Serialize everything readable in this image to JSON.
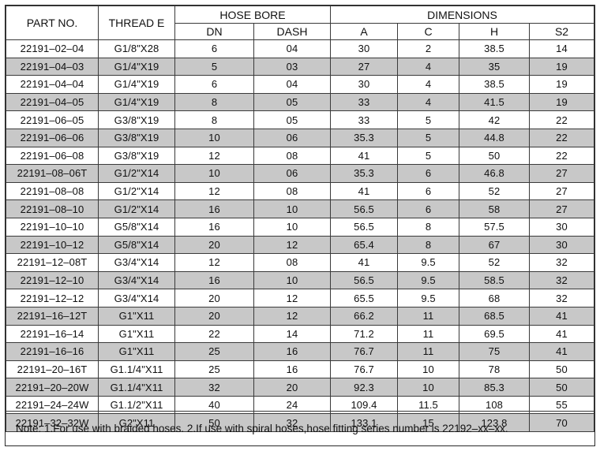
{
  "table": {
    "header": {
      "part_no": "PART NO.",
      "thread_e": "THREAD E",
      "hose_bore": "HOSE BORE",
      "dimensions": "DIMENSIONS",
      "dn": "DN",
      "dash": "DASH",
      "a": "A",
      "c": "C",
      "h": "H",
      "s2": "S2"
    },
    "rows": [
      {
        "part": "22191–02–04",
        "thread": "G1/8\"X28",
        "dn": "6",
        "dash": "04",
        "a": "30",
        "c": "2",
        "h": "38.5",
        "s2": "14"
      },
      {
        "part": "22191–04–03",
        "thread": "G1/4\"X19",
        "dn": "5",
        "dash": "03",
        "a": "27",
        "c": "4",
        "h": "35",
        "s2": "19"
      },
      {
        "part": "22191–04–04",
        "thread": "G1/4\"X19",
        "dn": "6",
        "dash": "04",
        "a": "30",
        "c": "4",
        "h": "38.5",
        "s2": "19"
      },
      {
        "part": "22191–04–05",
        "thread": "G1/4\"X19",
        "dn": "8",
        "dash": "05",
        "a": "33",
        "c": "4",
        "h": "41.5",
        "s2": "19"
      },
      {
        "part": "22191–06–05",
        "thread": "G3/8\"X19",
        "dn": "8",
        "dash": "05",
        "a": "33",
        "c": "5",
        "h": "42",
        "s2": "22"
      },
      {
        "part": "22191–06–06",
        "thread": "G3/8\"X19",
        "dn": "10",
        "dash": "06",
        "a": "35.3",
        "c": "5",
        "h": "44.8",
        "s2": "22"
      },
      {
        "part": "22191–06–08",
        "thread": "G3/8\"X19",
        "dn": "12",
        "dash": "08",
        "a": "41",
        "c": "5",
        "h": "50",
        "s2": "22"
      },
      {
        "part": "22191–08–06T",
        "thread": "G1/2\"X14",
        "dn": "10",
        "dash": "06",
        "a": "35.3",
        "c": "6",
        "h": "46.8",
        "s2": "27"
      },
      {
        "part": "22191–08–08",
        "thread": "G1/2\"X14",
        "dn": "12",
        "dash": "08",
        "a": "41",
        "c": "6",
        "h": "52",
        "s2": "27"
      },
      {
        "part": "22191–08–10",
        "thread": "G1/2\"X14",
        "dn": "16",
        "dash": "10",
        "a": "56.5",
        "c": "6",
        "h": "58",
        "s2": "27"
      },
      {
        "part": "22191–10–10",
        "thread": "G5/8\"X14",
        "dn": "16",
        "dash": "10",
        "a": "56.5",
        "c": "8",
        "h": "57.5",
        "s2": "30"
      },
      {
        "part": "22191–10–12",
        "thread": "G5/8\"X14",
        "dn": "20",
        "dash": "12",
        "a": "65.4",
        "c": "8",
        "h": "67",
        "s2": "30"
      },
      {
        "part": "22191–12–08T",
        "thread": "G3/4\"X14",
        "dn": "12",
        "dash": "08",
        "a": "41",
        "c": "9.5",
        "h": "52",
        "s2": "32"
      },
      {
        "part": "22191–12–10",
        "thread": "G3/4\"X14",
        "dn": "16",
        "dash": "10",
        "a": "56.5",
        "c": "9.5",
        "h": "58.5",
        "s2": "32"
      },
      {
        "part": "22191–12–12",
        "thread": "G3/4\"X14",
        "dn": "20",
        "dash": "12",
        "a": "65.5",
        "c": "9.5",
        "h": "68",
        "s2": "32"
      },
      {
        "part": "22191–16–12T",
        "thread": "G1\"X11",
        "dn": "20",
        "dash": "12",
        "a": "66.2",
        "c": "11",
        "h": "68.5",
        "s2": "41"
      },
      {
        "part": "22191–16–14",
        "thread": "G1\"X11",
        "dn": "22",
        "dash": "14",
        "a": "71.2",
        "c": "11",
        "h": "69.5",
        "s2": "41"
      },
      {
        "part": "22191–16–16",
        "thread": "G1\"X11",
        "dn": "25",
        "dash": "16",
        "a": "76.7",
        "c": "11",
        "h": "75",
        "s2": "41"
      },
      {
        "part": "22191–20–16T",
        "thread": "G1.1/4\"X11",
        "dn": "25",
        "dash": "16",
        "a": "76.7",
        "c": "10",
        "h": "78",
        "s2": "50"
      },
      {
        "part": "22191–20–20W",
        "thread": "G1.1/4\"X11",
        "dn": "32",
        "dash": "20",
        "a": "92.3",
        "c": "10",
        "h": "85.3",
        "s2": "50"
      },
      {
        "part": "22191–24–24W",
        "thread": "G1.1/2\"X11",
        "dn": "40",
        "dash": "24",
        "a": "109.4",
        "c": "11.5",
        "h": "108",
        "s2": "55"
      },
      {
        "part": "22191–32–32W",
        "thread": "G2\"X11",
        "dn": "50",
        "dash": "32",
        "a": "133.1",
        "c": "15",
        "h": "123.8",
        "s2": "70"
      }
    ]
  },
  "note": "Note: 1.For use with braided hoses.   2.If use with spiral hoses,hose fitting series number is 22192–xx–xx.",
  "colors": {
    "shaded_row": "#c8c8c8",
    "plain_row": "#ffffff",
    "border": "#3a3a3a"
  }
}
